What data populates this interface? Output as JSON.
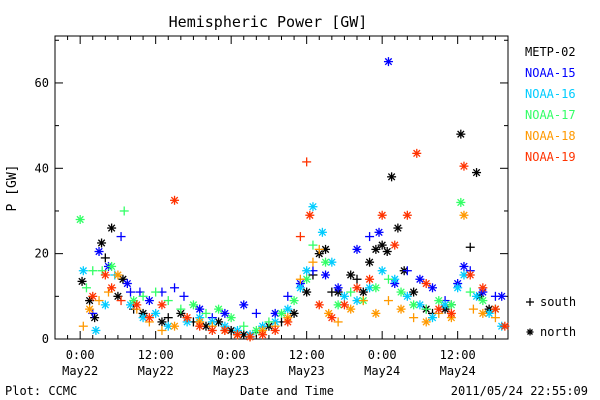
{
  "chart_data": {
    "type": "scatter",
    "title": "Hemispheric Power [GW]",
    "xlabel": "Date and Time",
    "ylabel": "P [GW]",
    "ylim": [
      0,
      71
    ],
    "xlim_hours": [
      -4,
      68
    ],
    "grid": false,
    "legend_position": "right",
    "x_ticks": [
      {
        "hour": 0,
        "time": "0:00",
        "date": "May22"
      },
      {
        "hour": 12,
        "time": "12:00",
        "date": "May22"
      },
      {
        "hour": 24,
        "time": "0:00",
        "date": "May23"
      },
      {
        "hour": 36,
        "time": "12:00",
        "date": "May23"
      },
      {
        "hour": 48,
        "time": "0:00",
        "date": "May24"
      },
      {
        "hour": 60,
        "time": "12:00",
        "date": "May24"
      }
    ],
    "y_ticks": [
      0,
      20,
      40,
      60
    ],
    "markers": [
      {
        "label": "south",
        "symbol": "+"
      },
      {
        "label": "north",
        "symbol": "*"
      }
    ],
    "footer_left": "Plot: CCMC",
    "footer_right": "2011/05/24 22:55:09",
    "series": [
      {
        "name": "METP-02",
        "color": "#000000",
        "points": [
          [
            0.3,
            13.5,
            "*"
          ],
          [
            1.5,
            9,
            "*"
          ],
          [
            2.3,
            5,
            "*"
          ],
          [
            3.4,
            22.5,
            "*"
          ],
          [
            4,
            19,
            "+"
          ],
          [
            5,
            26,
            "*"
          ],
          [
            6,
            10,
            "*"
          ],
          [
            6.8,
            14,
            "*"
          ],
          [
            8.5,
            7,
            "+"
          ],
          [
            10,
            6,
            "*"
          ],
          [
            13,
            4,
            "*"
          ],
          [
            14,
            5,
            "+"
          ],
          [
            16,
            6,
            "*"
          ],
          [
            18,
            4,
            "+"
          ],
          [
            20,
            3,
            "*"
          ],
          [
            22,
            4,
            "*"
          ],
          [
            24,
            2,
            "*"
          ],
          [
            26,
            1,
            "*"
          ],
          [
            28,
            1.5,
            "+"
          ],
          [
            30,
            3,
            "*"
          ],
          [
            32,
            4,
            "+"
          ],
          [
            34,
            6,
            "*"
          ],
          [
            36,
            11,
            "*"
          ],
          [
            37,
            15,
            "+"
          ],
          [
            38,
            20,
            "*"
          ],
          [
            39,
            21,
            "*"
          ],
          [
            40,
            11,
            "+"
          ],
          [
            41,
            11,
            "*"
          ],
          [
            43,
            15,
            "*"
          ],
          [
            44,
            14,
            "+"
          ],
          [
            45,
            11,
            "*"
          ],
          [
            46,
            18,
            "*"
          ],
          [
            47,
            21,
            "*"
          ],
          [
            48,
            22,
            "*"
          ],
          [
            48.8,
            20.5,
            "*"
          ],
          [
            49.5,
            38,
            "*"
          ],
          [
            50.5,
            26,
            "*"
          ],
          [
            51.5,
            16,
            "*"
          ],
          [
            53,
            11,
            "*"
          ],
          [
            55,
            7,
            "*"
          ],
          [
            56,
            6,
            "+"
          ],
          [
            58,
            7,
            "*"
          ],
          [
            59,
            8,
            "+"
          ],
          [
            60.5,
            48,
            "*"
          ],
          [
            62,
            21.5,
            "+"
          ],
          [
            63,
            39,
            "*"
          ],
          [
            63.5,
            10,
            "*"
          ],
          [
            65,
            7,
            "*"
          ]
        ]
      },
      {
        "name": "NOAA-15",
        "color": "#0000ff",
        "points": [
          [
            2,
            6,
            "+"
          ],
          [
            3,
            20.5,
            "*"
          ],
          [
            4.5,
            17,
            "*"
          ],
          [
            6.5,
            24,
            "+"
          ],
          [
            7.5,
            13,
            "*"
          ],
          [
            8,
            11,
            "+"
          ],
          [
            9.5,
            11,
            "+"
          ],
          [
            11,
            9,
            "*"
          ],
          [
            13,
            11,
            "+"
          ],
          [
            15,
            12,
            "+"
          ],
          [
            16.5,
            10,
            "+"
          ],
          [
            19,
            7,
            "*"
          ],
          [
            21,
            5,
            "+"
          ],
          [
            23,
            6,
            "*"
          ],
          [
            26,
            8,
            "*"
          ],
          [
            28,
            6,
            "+"
          ],
          [
            31,
            6,
            "*"
          ],
          [
            33,
            10,
            "+"
          ],
          [
            35,
            13,
            "*"
          ],
          [
            37,
            16,
            "+"
          ],
          [
            39,
            15,
            "*"
          ],
          [
            41,
            12,
            "*"
          ],
          [
            44,
            21,
            "*"
          ],
          [
            46,
            24,
            "+"
          ],
          [
            47.5,
            25,
            "*"
          ],
          [
            49,
            65,
            "*"
          ],
          [
            50,
            13,
            "*"
          ],
          [
            52,
            16,
            "+"
          ],
          [
            54,
            14,
            "*"
          ],
          [
            56,
            12,
            "*"
          ],
          [
            58,
            9,
            "+"
          ],
          [
            60,
            13,
            "*"
          ],
          [
            61,
            17,
            "*"
          ],
          [
            62,
            16,
            "+"
          ],
          [
            64,
            11,
            "*"
          ],
          [
            66,
            10,
            "+"
          ],
          [
            67,
            10,
            "*"
          ]
        ]
      },
      {
        "name": "NOAA-16",
        "color": "#00ccff",
        "points": [
          [
            0.5,
            16,
            "*"
          ],
          [
            2.5,
            2,
            "*"
          ],
          [
            4,
            8,
            "*"
          ],
          [
            5.5,
            15,
            "+"
          ],
          [
            8,
            8,
            "*"
          ],
          [
            10,
            5,
            "*"
          ],
          [
            12,
            6,
            "*"
          ],
          [
            14,
            3,
            "*"
          ],
          [
            17,
            4,
            "*"
          ],
          [
            19,
            5,
            "*"
          ],
          [
            21,
            4,
            "*"
          ],
          [
            23,
            3,
            "*"
          ],
          [
            25,
            2,
            "*"
          ],
          [
            27,
            1,
            "*"
          ],
          [
            29,
            3,
            "*"
          ],
          [
            31,
            4,
            "*"
          ],
          [
            33,
            7,
            "*"
          ],
          [
            35,
            12,
            "*"
          ],
          [
            36,
            16,
            "*"
          ],
          [
            37,
            31,
            "*"
          ],
          [
            38.5,
            25,
            "*"
          ],
          [
            40,
            18,
            "*"
          ],
          [
            42,
            10,
            "*"
          ],
          [
            44,
            9,
            "*"
          ],
          [
            46,
            12,
            "*"
          ],
          [
            48,
            16,
            "*"
          ],
          [
            50,
            14,
            "*"
          ],
          [
            52,
            10,
            "*"
          ],
          [
            54,
            8,
            "*"
          ],
          [
            56,
            5,
            "*"
          ],
          [
            58,
            8,
            "*"
          ],
          [
            60,
            12,
            "*"
          ],
          [
            61,
            15,
            "*"
          ],
          [
            63,
            10,
            "*"
          ],
          [
            65,
            6,
            "*"
          ],
          [
            67,
            3,
            "*"
          ]
        ]
      },
      {
        "name": "NOAA-17",
        "color": "#33ff66",
        "points": [
          [
            0,
            28,
            "*"
          ],
          [
            1,
            12,
            "+"
          ],
          [
            2,
            16,
            "+"
          ],
          [
            3.5,
            16,
            "+"
          ],
          [
            5,
            17,
            "*"
          ],
          [
            7,
            30,
            "+"
          ],
          [
            8.5,
            9,
            "*"
          ],
          [
            10,
            10,
            "+"
          ],
          [
            12,
            11,
            "+"
          ],
          [
            14,
            9,
            "+"
          ],
          [
            16,
            7,
            "+"
          ],
          [
            18,
            8,
            "*"
          ],
          [
            20,
            6,
            "+"
          ],
          [
            22,
            7,
            "*"
          ],
          [
            24,
            5,
            "*"
          ],
          [
            26,
            3,
            "+"
          ],
          [
            28,
            2,
            "*"
          ],
          [
            30,
            4,
            "+"
          ],
          [
            32,
            6,
            "*"
          ],
          [
            34,
            9,
            "*"
          ],
          [
            36,
            14,
            "*"
          ],
          [
            37,
            22,
            "+"
          ],
          [
            39,
            18,
            "*"
          ],
          [
            41,
            8,
            "*"
          ],
          [
            43,
            11,
            "+"
          ],
          [
            45,
            9,
            "*"
          ],
          [
            47,
            12,
            "*"
          ],
          [
            49,
            14,
            "+"
          ],
          [
            51,
            11,
            "*"
          ],
          [
            53,
            8,
            "*"
          ],
          [
            55,
            7,
            "+"
          ],
          [
            57,
            9,
            "*"
          ],
          [
            59,
            8,
            "*"
          ],
          [
            60.5,
            32,
            "*"
          ],
          [
            62,
            11,
            "+"
          ],
          [
            64,
            9,
            "*"
          ],
          [
            66,
            7,
            "*"
          ]
        ]
      },
      {
        "name": "NOAA-18",
        "color": "#ff9900",
        "points": [
          [
            0.5,
            3,
            "+"
          ],
          [
            1.5,
            7,
            "*"
          ],
          [
            3,
            9,
            "+"
          ],
          [
            4.5,
            11,
            "+"
          ],
          [
            6,
            15,
            "*"
          ],
          [
            9,
            7,
            "+"
          ],
          [
            11,
            4,
            "+"
          ],
          [
            13,
            2,
            "+"
          ],
          [
            15,
            3,
            "*"
          ],
          [
            17,
            5,
            "+"
          ],
          [
            19,
            4,
            "*"
          ],
          [
            21,
            3,
            "+"
          ],
          [
            23,
            2,
            "*"
          ],
          [
            25,
            1,
            "*"
          ],
          [
            27,
            0.5,
            "+"
          ],
          [
            29,
            2,
            "*"
          ],
          [
            31,
            3,
            "+"
          ],
          [
            33,
            5,
            "*"
          ],
          [
            35,
            14,
            "+"
          ],
          [
            37,
            18,
            "+"
          ],
          [
            38,
            21,
            "+"
          ],
          [
            39.5,
            6,
            "*"
          ],
          [
            41,
            4,
            "+"
          ],
          [
            43,
            7,
            "*"
          ],
          [
            45,
            9,
            "+"
          ],
          [
            47,
            6,
            "*"
          ],
          [
            49,
            9,
            "+"
          ],
          [
            51,
            7,
            "*"
          ],
          [
            53,
            5,
            "+"
          ],
          [
            55,
            4,
            "*"
          ],
          [
            57,
            6,
            "+"
          ],
          [
            59,
            5,
            "*"
          ],
          [
            61,
            29,
            "*"
          ],
          [
            62.5,
            7,
            "+"
          ],
          [
            64,
            6,
            "*"
          ],
          [
            66,
            5,
            "+"
          ]
        ]
      },
      {
        "name": "NOAA-19",
        "color": "#ff3300",
        "points": [
          [
            2,
            10,
            "*"
          ],
          [
            4,
            15,
            "*"
          ],
          [
            5,
            12,
            "*"
          ],
          [
            6.5,
            9,
            "+"
          ],
          [
            9,
            8,
            "*"
          ],
          [
            11,
            5,
            "*"
          ],
          [
            13,
            8,
            "*"
          ],
          [
            15,
            32.5,
            "*"
          ],
          [
            17,
            5,
            "*"
          ],
          [
            19,
            3,
            "*"
          ],
          [
            21,
            2,
            "*"
          ],
          [
            23,
            2,
            "*"
          ],
          [
            25,
            1,
            "*"
          ],
          [
            27,
            0.5,
            "*"
          ],
          [
            29,
            1,
            "*"
          ],
          [
            31,
            2,
            "*"
          ],
          [
            33,
            4,
            "*"
          ],
          [
            35,
            24,
            "+"
          ],
          [
            36,
            41.5,
            "+"
          ],
          [
            36.5,
            29,
            "*"
          ],
          [
            38,
            8,
            "*"
          ],
          [
            40,
            5,
            "*"
          ],
          [
            42,
            8,
            "*"
          ],
          [
            44,
            12,
            "*"
          ],
          [
            46,
            14,
            "*"
          ],
          [
            48,
            29,
            "*"
          ],
          [
            50,
            22,
            "*"
          ],
          [
            52,
            29,
            "*"
          ],
          [
            53.5,
            43.5,
            "*"
          ],
          [
            55,
            13,
            "*"
          ],
          [
            57,
            7,
            "*"
          ],
          [
            59,
            6,
            "*"
          ],
          [
            61,
            40.5,
            "*"
          ],
          [
            62,
            15,
            "*"
          ],
          [
            64,
            12,
            "*"
          ],
          [
            66,
            7,
            "*"
          ],
          [
            67.5,
            3,
            "*"
          ]
        ]
      }
    ]
  }
}
